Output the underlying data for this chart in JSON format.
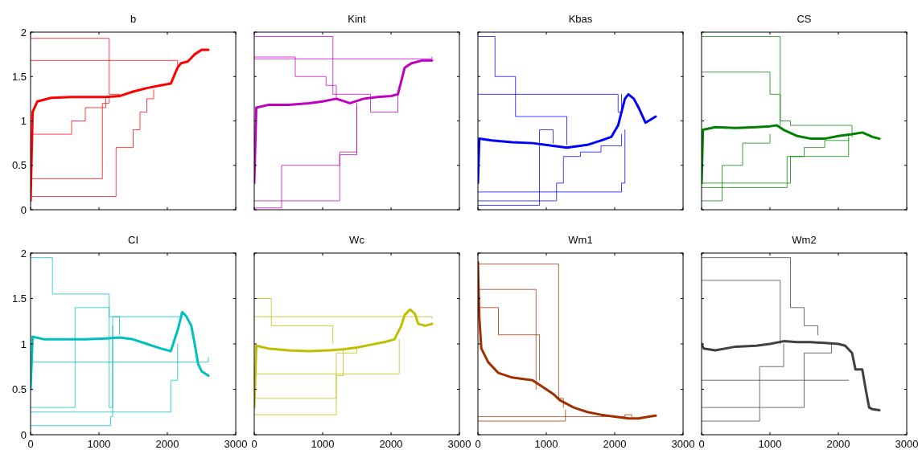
{
  "chart_data": [
    {
      "type": "line",
      "title": "b",
      "xlim": [
        0,
        3000
      ],
      "xticks": [
        0,
        1000,
        2000,
        3000
      ],
      "ylim": [
        0,
        2
      ],
      "yticks": [
        0,
        0.5,
        1,
        1.5,
        2
      ],
      "tick_labels": "y",
      "series": [
        {
          "type": "step",
          "color": "#ff0000",
          "x": [
            0,
            1250,
            1500,
            1600,
            1700,
            1800
          ],
          "values": [
            0.15,
            0.7,
            0.9,
            1.1,
            1.25,
            1.35
          ]
        },
        {
          "type": "step",
          "color": "#ff0000",
          "x": [
            0,
            1150,
            1300
          ],
          "values": [
            1.93,
            1.3,
            1.28
          ]
        },
        {
          "type": "step",
          "color": "#ff0000",
          "x": [
            0,
            2150
          ],
          "values": [
            1.68,
            1.6
          ]
        },
        {
          "type": "step",
          "color": "#ff0000",
          "x": [
            0,
            1050,
            1150
          ],
          "values": [
            0.35,
            1.2,
            1.28
          ]
        },
        {
          "type": "step",
          "color": "#ff0000",
          "x": [
            0,
            600,
            800,
            1100
          ],
          "values": [
            0.85,
            1.0,
            1.15,
            1.25
          ]
        },
        {
          "type": "line",
          "color": "#ff0000",
          "x": [
            0,
            30,
            100,
            300,
            600,
            900,
            1100,
            1300,
            1500,
            1700,
            1900,
            2050,
            2150,
            2200,
            2300,
            2400,
            2500,
            2600
          ],
          "values": [
            0.1,
            1.1,
            1.22,
            1.26,
            1.27,
            1.27,
            1.27,
            1.28,
            1.33,
            1.37,
            1.4,
            1.42,
            1.6,
            1.65,
            1.67,
            1.75,
            1.8,
            1.8
          ]
        }
      ]
    },
    {
      "type": "line",
      "title": "Kint",
      "xlim": [
        0,
        3000
      ],
      "xticks": [
        0,
        1000,
        2000,
        3000
      ],
      "ylim": [
        0,
        2
      ],
      "yticks": [
        0,
        0.5,
        1,
        1.5,
        2
      ],
      "tick_labels": false,
      "series": [
        {
          "type": "step",
          "color": "#bf00bf",
          "x": [
            0,
            2600
          ],
          "values": [
            1.7,
            1.72
          ]
        },
        {
          "type": "step",
          "color": "#bf00bf",
          "x": [
            0,
            400,
            1250,
            1500
          ],
          "values": [
            0.02,
            0.5,
            0.62,
            1.2
          ]
        },
        {
          "type": "step",
          "color": "#bf00bf",
          "x": [
            0,
            1250,
            1500
          ],
          "values": [
            0.1,
            0.65,
            1.17
          ]
        },
        {
          "type": "step",
          "color": "#bf00bf",
          "x": [
            0,
            600,
            1050,
            1200
          ],
          "values": [
            1.72,
            1.5,
            1.4,
            1.25
          ]
        },
        {
          "type": "step",
          "color": "#bf00bf",
          "x": [
            0,
            1150,
            1700,
            2100
          ],
          "values": [
            1.95,
            1.3,
            1.1,
            1.3
          ]
        },
        {
          "type": "line",
          "color": "#bf00bf",
          "x": [
            0,
            30,
            200,
            500,
            800,
            1000,
            1200,
            1400,
            1600,
            1800,
            2000,
            2100,
            2150,
            2200,
            2300,
            2450,
            2600
          ],
          "values": [
            0.3,
            1.15,
            1.18,
            1.18,
            1.2,
            1.22,
            1.25,
            1.2,
            1.25,
            1.27,
            1.28,
            1.3,
            1.45,
            1.6,
            1.65,
            1.68,
            1.68
          ]
        }
      ]
    },
    {
      "type": "line",
      "title": "Kbas",
      "xlim": [
        0,
        3000
      ],
      "xticks": [
        0,
        1000,
        2000,
        3000
      ],
      "ylim": [
        0,
        2
      ],
      "yticks": [
        0,
        0.5,
        1,
        1.5,
        2
      ],
      "tick_labels": false,
      "series": [
        {
          "type": "step",
          "color": "#0000ff",
          "x": [
            0,
            250,
            550,
            1300
          ],
          "values": [
            1.95,
            1.5,
            1.05,
            0.73
          ]
        },
        {
          "type": "step",
          "color": "#0000ff",
          "x": [
            0,
            1150,
            1250,
            1500,
            1800,
            2100
          ],
          "values": [
            0.1,
            0.3,
            0.6,
            0.65,
            0.72,
            0.85
          ]
        },
        {
          "type": "step",
          "color": "#0000ff",
          "x": [
            0,
            2100,
            2150
          ],
          "values": [
            0.2,
            0.3,
            0.9
          ]
        },
        {
          "type": "step",
          "color": "#0000ff",
          "x": [
            0,
            2050,
            2100
          ],
          "values": [
            1.3,
            1.1,
            1.3
          ]
        },
        {
          "type": "step",
          "color": "#0000ff",
          "x": [
            0,
            900,
            1100
          ],
          "values": [
            0.05,
            0.9,
            0.75
          ]
        },
        {
          "type": "line",
          "color": "#0000ff",
          "x": [
            0,
            20,
            200,
            500,
            800,
            1100,
            1300,
            1600,
            1800,
            1950,
            2050,
            2100,
            2150,
            2200,
            2280,
            2350,
            2450,
            2600
          ],
          "values": [
            0.3,
            0.8,
            0.78,
            0.76,
            0.75,
            0.72,
            0.7,
            0.73,
            0.78,
            0.82,
            0.95,
            1.1,
            1.25,
            1.3,
            1.25,
            1.15,
            0.98,
            1.05
          ]
        }
      ]
    },
    {
      "type": "line",
      "title": "CS",
      "xlim": [
        0,
        3000
      ],
      "xticks": [
        0,
        1000,
        2000,
        3000
      ],
      "ylim": [
        0,
        2
      ],
      "yticks": [
        0,
        0.5,
        1,
        1.5,
        2
      ],
      "tick_labels": false,
      "series": [
        {
          "type": "step",
          "color": "#008000",
          "x": [
            0,
            1150,
            1300,
            2200
          ],
          "values": [
            1.95,
            1.0,
            0.95,
            0.82
          ]
        },
        {
          "type": "step",
          "color": "#008000",
          "x": [
            0,
            1250,
            1500,
            1800,
            2150
          ],
          "values": [
            0.25,
            0.6,
            0.7,
            0.78,
            0.8
          ]
        },
        {
          "type": "step",
          "color": "#008000",
          "x": [
            0,
            1000,
            1150
          ],
          "values": [
            1.55,
            1.3,
            0.95
          ]
        },
        {
          "type": "step",
          "color": "#008000",
          "x": [
            0,
            300,
            600,
            1000
          ],
          "values": [
            0.1,
            0.5,
            0.75,
            0.85
          ]
        },
        {
          "type": "step",
          "color": "#008000",
          "x": [
            0,
            1300,
            2150
          ],
          "values": [
            0.3,
            0.6,
            0.85
          ]
        },
        {
          "type": "line",
          "color": "#008000",
          "x": [
            0,
            20,
            200,
            500,
            800,
            1000,
            1100,
            1200,
            1400,
            1600,
            1800,
            2000,
            2200,
            2350,
            2500,
            2600
          ],
          "values": [
            0.3,
            0.9,
            0.93,
            0.92,
            0.93,
            0.94,
            0.95,
            0.9,
            0.83,
            0.8,
            0.8,
            0.83,
            0.85,
            0.87,
            0.82,
            0.8
          ]
        }
      ]
    },
    {
      "type": "line",
      "title": "CI",
      "xlim": [
        0,
        3000
      ],
      "xticks": [
        0,
        1000,
        2000,
        3000
      ],
      "ylim": [
        0,
        2
      ],
      "yticks": [
        0,
        0.5,
        1,
        1.5,
        2
      ],
      "series": [
        {
          "type": "step",
          "color": "#00bfbf",
          "x": [
            0,
            320,
            1150,
            1200,
            2200
          ],
          "values": [
            1.95,
            1.55,
            0.3,
            1.3,
            1.35
          ]
        },
        {
          "type": "step",
          "color": "#00bfbf",
          "x": [
            0,
            1170,
            1200
          ],
          "values": [
            0.1,
            0.2,
            1.2
          ]
        },
        {
          "type": "step",
          "color": "#00bfbf",
          "x": [
            0,
            2050,
            2150
          ],
          "values": [
            0.25,
            0.6,
            1.0
          ]
        },
        {
          "type": "step",
          "color": "#00bfbf",
          "x": [
            0,
            2600
          ],
          "values": [
            0.8,
            0.85
          ]
        },
        {
          "type": "step",
          "color": "#00bfbf",
          "x": [
            0,
            650,
            1150,
            1300
          ],
          "values": [
            0.3,
            1.4,
            1.3,
            1.1
          ]
        },
        {
          "type": "line",
          "color": "#00bfbf",
          "x": [
            0,
            30,
            200,
            500,
            800,
            1100,
            1300,
            1500,
            1700,
            1900,
            2050,
            2150,
            2220,
            2280,
            2350,
            2400,
            2450,
            2500,
            2600
          ],
          "values": [
            0.5,
            1.08,
            1.05,
            1.05,
            1.05,
            1.06,
            1.07,
            1.05,
            1.0,
            0.95,
            0.92,
            1.15,
            1.35,
            1.3,
            1.2,
            1.0,
            0.78,
            0.7,
            0.65
          ]
        }
      ]
    },
    {
      "type": "line",
      "title": "Wc",
      "xlim": [
        0,
        3000
      ],
      "xticks": [
        0,
        1000,
        2000,
        3000
      ],
      "ylim": [
        0,
        2
      ],
      "yticks": [
        0,
        0.5,
        1,
        1.5,
        2
      ],
      "tick_labels": "x",
      "series": [
        {
          "type": "step",
          "color": "#bfbf00",
          "x": [
            0,
            250,
            1150
          ],
          "values": [
            1.5,
            1.2,
            1.0
          ]
        },
        {
          "type": "step",
          "color": "#bfbf00",
          "x": [
            0,
            1200,
            1500
          ],
          "values": [
            0.22,
            0.9,
            0.95
          ]
        },
        {
          "type": "step",
          "color": "#bfbf00",
          "x": [
            0,
            2600
          ],
          "values": [
            1.3,
            1.28
          ]
        },
        {
          "type": "step",
          "color": "#bfbf00",
          "x": [
            0,
            1500,
            2120
          ],
          "values": [
            0.67,
            0.67,
            1.05
          ]
        },
        {
          "type": "step",
          "color": "#bfbf00",
          "x": [
            0,
            1200,
            1300
          ],
          "values": [
            0.4,
            0.65,
            0.95
          ]
        },
        {
          "type": "line",
          "color": "#bfbf00",
          "x": [
            0,
            30,
            200,
            500,
            800,
            1100,
            1300,
            1500,
            1700,
            1900,
            2050,
            2150,
            2200,
            2280,
            2350,
            2400,
            2500,
            2600
          ],
          "values": [
            0.3,
            0.98,
            0.95,
            0.93,
            0.92,
            0.93,
            0.94,
            0.96,
            0.99,
            1.02,
            1.05,
            1.2,
            1.32,
            1.38,
            1.33,
            1.22,
            1.2,
            1.22
          ]
        }
      ]
    },
    {
      "type": "line",
      "title": "Wm1",
      "xlim": [
        0,
        3000
      ],
      "xticks": [
        0,
        1000,
        2000,
        3000
      ],
      "ylim": [
        0,
        2
      ],
      "yticks": [
        0,
        0.5,
        1,
        1.5,
        2
      ],
      "tick_labels": "x",
      "series": [
        {
          "type": "step",
          "color": "#a03000",
          "x": [
            0,
            1180,
            1250
          ],
          "values": [
            1.88,
            0.4,
            0.3
          ]
        },
        {
          "type": "step",
          "color": "#a03000",
          "x": [
            0,
            850
          ],
          "values": [
            1.6,
            0.5
          ]
        },
        {
          "type": "step",
          "color": "#a03000",
          "x": [
            0,
            1280
          ],
          "values": [
            0.15,
            0.27
          ]
        },
        {
          "type": "step",
          "color": "#a03000",
          "x": [
            0,
            2150,
            2250
          ],
          "values": [
            0.2,
            0.22,
            0.2
          ]
        },
        {
          "type": "step",
          "color": "#a03000",
          "x": [
            0,
            300,
            900
          ],
          "values": [
            1.4,
            1.1,
            0.6
          ]
        },
        {
          "type": "line",
          "color": "#a03000",
          "x": [
            0,
            20,
            50,
            150,
            300,
            500,
            800,
            1000,
            1100,
            1200,
            1400,
            1600,
            1800,
            2000,
            2200,
            2350,
            2500,
            2600
          ],
          "values": [
            1.9,
            1.3,
            0.95,
            0.8,
            0.68,
            0.63,
            0.6,
            0.5,
            0.45,
            0.38,
            0.3,
            0.25,
            0.22,
            0.2,
            0.18,
            0.18,
            0.2,
            0.21
          ]
        }
      ]
    },
    {
      "type": "line",
      "title": "Wm2",
      "xlim": [
        0,
        3000
      ],
      "xticks": [
        0,
        1000,
        2000,
        3000
      ],
      "ylim": [
        0,
        2
      ],
      "yticks": [
        0,
        0.5,
        1,
        1.5,
        2
      ],
      "tick_labels": "x",
      "series": [
        {
          "type": "step",
          "color": "#404040",
          "x": [
            0,
            1300,
            1500,
            1700
          ],
          "values": [
            1.95,
            1.4,
            1.2,
            1.1
          ]
        },
        {
          "type": "step",
          "color": "#404040",
          "x": [
            0,
            1500,
            1900
          ],
          "values": [
            0.3,
            0.9,
            1.0
          ]
        },
        {
          "type": "step",
          "color": "#404040",
          "x": [
            0,
            850,
            1200
          ],
          "values": [
            0.15,
            0.75,
            1.0
          ]
        },
        {
          "type": "step",
          "color": "#404040",
          "x": [
            0,
            1150
          ],
          "values": [
            1.7,
            1.0
          ]
        },
        {
          "type": "step",
          "color": "#404040",
          "x": [
            0,
            2150
          ],
          "values": [
            0.6,
            0.6
          ]
        },
        {
          "type": "line",
          "color": "#404040",
          "x": [
            0,
            30,
            200,
            500,
            800,
            1000,
            1200,
            1400,
            1600,
            1800,
            2000,
            2100,
            2200,
            2250,
            2350,
            2400,
            2450,
            2500,
            2600
          ],
          "values": [
            1.0,
            0.95,
            0.93,
            0.97,
            0.98,
            1.0,
            1.03,
            1.02,
            1.02,
            1.01,
            1.0,
            0.98,
            0.9,
            0.72,
            0.72,
            0.5,
            0.3,
            0.28,
            0.27
          ]
        }
      ]
    }
  ]
}
